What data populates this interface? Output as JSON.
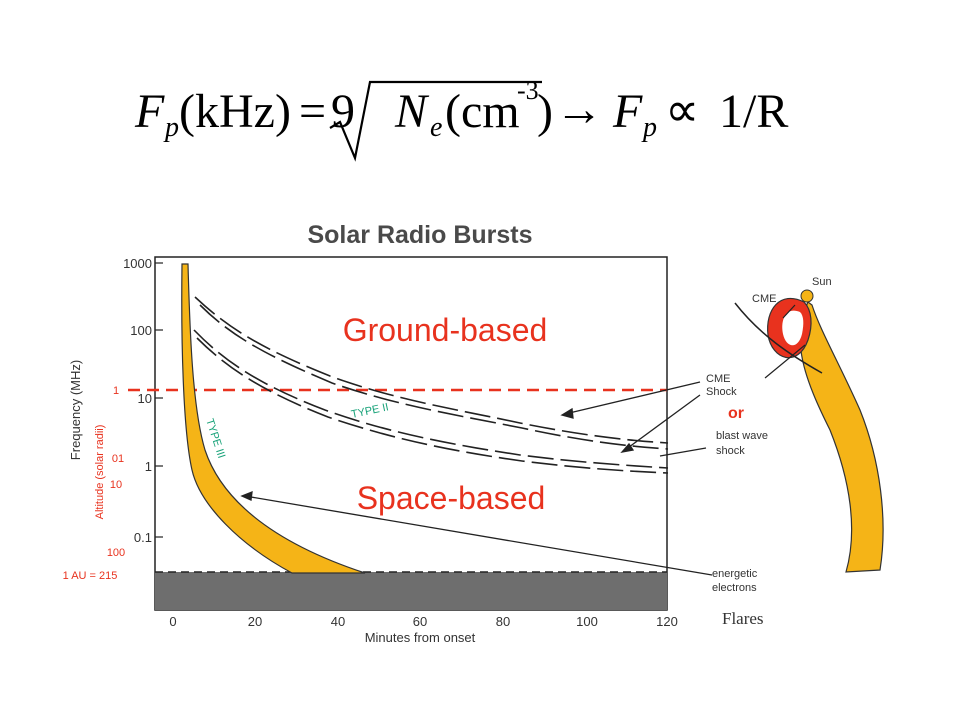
{
  "formula": {
    "left_F": "F",
    "left_sub": "p",
    "left_unit": "(kHz)",
    "equals": "=",
    "nine": "9",
    "N": "N",
    "N_sub": "e",
    "N_unit_open": "(cm",
    "N_unit_exp": "-3",
    "N_unit_close": ")",
    "arrow": "→",
    "right_F": "F",
    "right_sub": "p",
    "propto": "∝",
    "right_expr": "1/R"
  },
  "chart": {
    "title": "Solar  Radio  Bursts",
    "y_axis_label": "Frequency (MHz)",
    "y_ticks": [
      "1000",
      "100",
      "10",
      "1",
      "0.1"
    ],
    "x_axis_label": "Minutes from onset",
    "x_ticks": [
      "0",
      "20",
      "40",
      "60",
      "80",
      "100",
      "120"
    ],
    "alt_axis_label": "Altitude (solar radii)",
    "alt_ticks": [
      "1",
      "10",
      "100"
    ],
    "alt_tick_small": "01",
    "au_label": "1 AU = 215",
    "region_top": "Ground-based",
    "region_bottom": "Space-based",
    "type2_label": "TYPE II",
    "type3_label": "TYPE III"
  },
  "side": {
    "sun": "Sun",
    "cme": "CME",
    "cme_shock_1": "CME",
    "cme_shock_2": "Shock",
    "or": "or",
    "blast_1": "blast wave",
    "blast_2": "shock",
    "energetic_1": "energetic",
    "energetic_2": "electrons",
    "flares": "Flares"
  },
  "colors": {
    "burst_fill": "#f5b417",
    "cme_red": "#e8321e",
    "label_red": "#e8321e",
    "label_green": "#1aa37a",
    "ground_gray": "#6e6e6e"
  }
}
